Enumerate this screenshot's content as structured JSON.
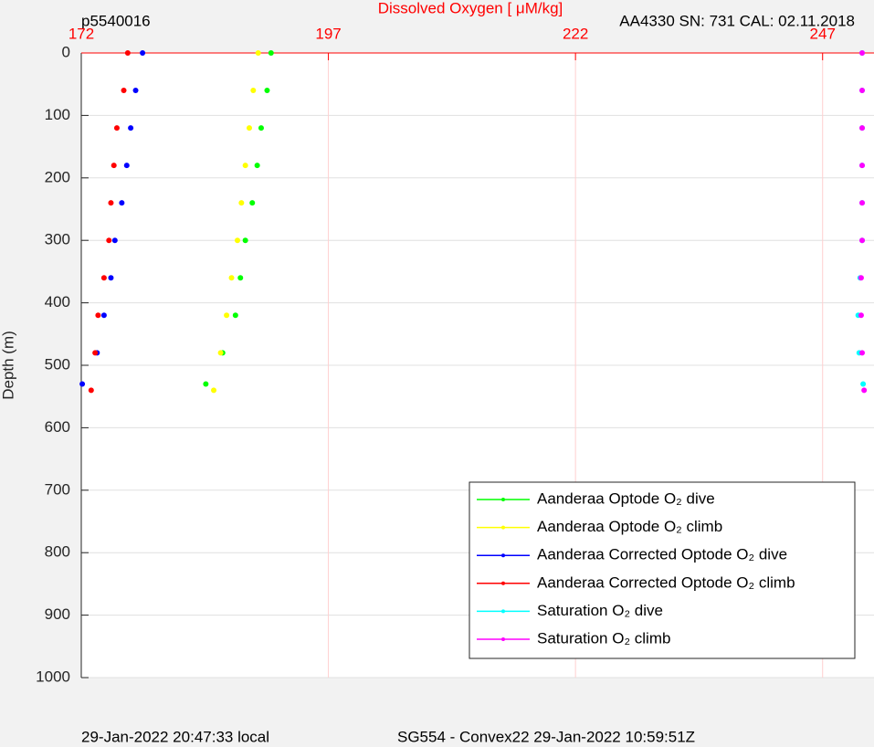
{
  "chart_data": {
    "type": "scatter",
    "title": "Dissolved Oxygen [    μM/kg]",
    "subtitle_left": "p5540016",
    "subtitle_right": "AA4330   SN: 731   CAL: 02.11.2018",
    "footer_left": "29-Jan-2022 20:47:33 local",
    "footer_right": "SG554 - Convex22 29-Jan-2022 10:59:51Z",
    "y_label": "Depth (m)",
    "xlim": [
      172,
      252.2
    ],
    "xticks": [
      172,
      197,
      222,
      247
    ],
    "ylim": [
      0,
      1000
    ],
    "yticks": [
      0,
      100,
      200,
      300,
      400,
      500,
      600,
      700,
      800,
      900,
      1000
    ],
    "y_reversed": true,
    "grid": true,
    "legend": "lower right",
    "series": [
      {
        "name": "Aanderaa Optode O₂ dive",
        "color": "#00ff00",
        "x": [
          191.2,
          190.8,
          190.2,
          189.8,
          189.3,
          188.6,
          188.1,
          187.6,
          186.3,
          184.6
        ],
        "y": [
          0,
          60,
          120,
          180,
          240,
          300,
          360,
          420,
          480,
          530
        ]
      },
      {
        "name": "Aanderaa Optode O₂ climb",
        "color": "#ffff00",
        "x": [
          189.9,
          189.4,
          189.0,
          188.6,
          188.2,
          187.8,
          187.2,
          186.7,
          186.1,
          185.4
        ],
        "y": [
          0,
          60,
          120,
          180,
          240,
          300,
          360,
          420,
          480,
          540
        ]
      },
      {
        "name": "Aanderaa Corrected Optode O₂ dive",
        "color": "#0000ff",
        "x": [
          178.2,
          177.5,
          177.0,
          176.6,
          176.1,
          175.4,
          175.0,
          174.3,
          173.6,
          172.1
        ],
        "y": [
          0,
          60,
          120,
          180,
          240,
          300,
          360,
          420,
          480,
          530
        ]
      },
      {
        "name": "Aanderaa Corrected Optode O₂ climb",
        "color": "#ff0000",
        "x": [
          176.7,
          176.3,
          175.6,
          175.3,
          175.0,
          174.8,
          174.3,
          173.7,
          173.4,
          173.0
        ],
        "y": [
          0,
          60,
          120,
          180,
          240,
          300,
          360,
          420,
          480,
          540
        ]
      },
      {
        "name": "Saturation O₂ dive",
        "color": "#00ffff",
        "x": [
          251.0,
          251.0,
          251.0,
          251.0,
          251.0,
          251.0,
          250.8,
          250.6,
          250.7,
          251.1
        ],
        "y": [
          0,
          60,
          120,
          180,
          240,
          300,
          360,
          420,
          480,
          530
        ]
      },
      {
        "name": "Saturation O₂ climb",
        "color": "#ff00ff",
        "x": [
          251.0,
          251.0,
          251.0,
          251.0,
          251.0,
          251.0,
          250.9,
          250.9,
          251.0,
          251.2
        ],
        "y": [
          0,
          60,
          120,
          180,
          240,
          300,
          360,
          420,
          480,
          540
        ]
      }
    ]
  }
}
